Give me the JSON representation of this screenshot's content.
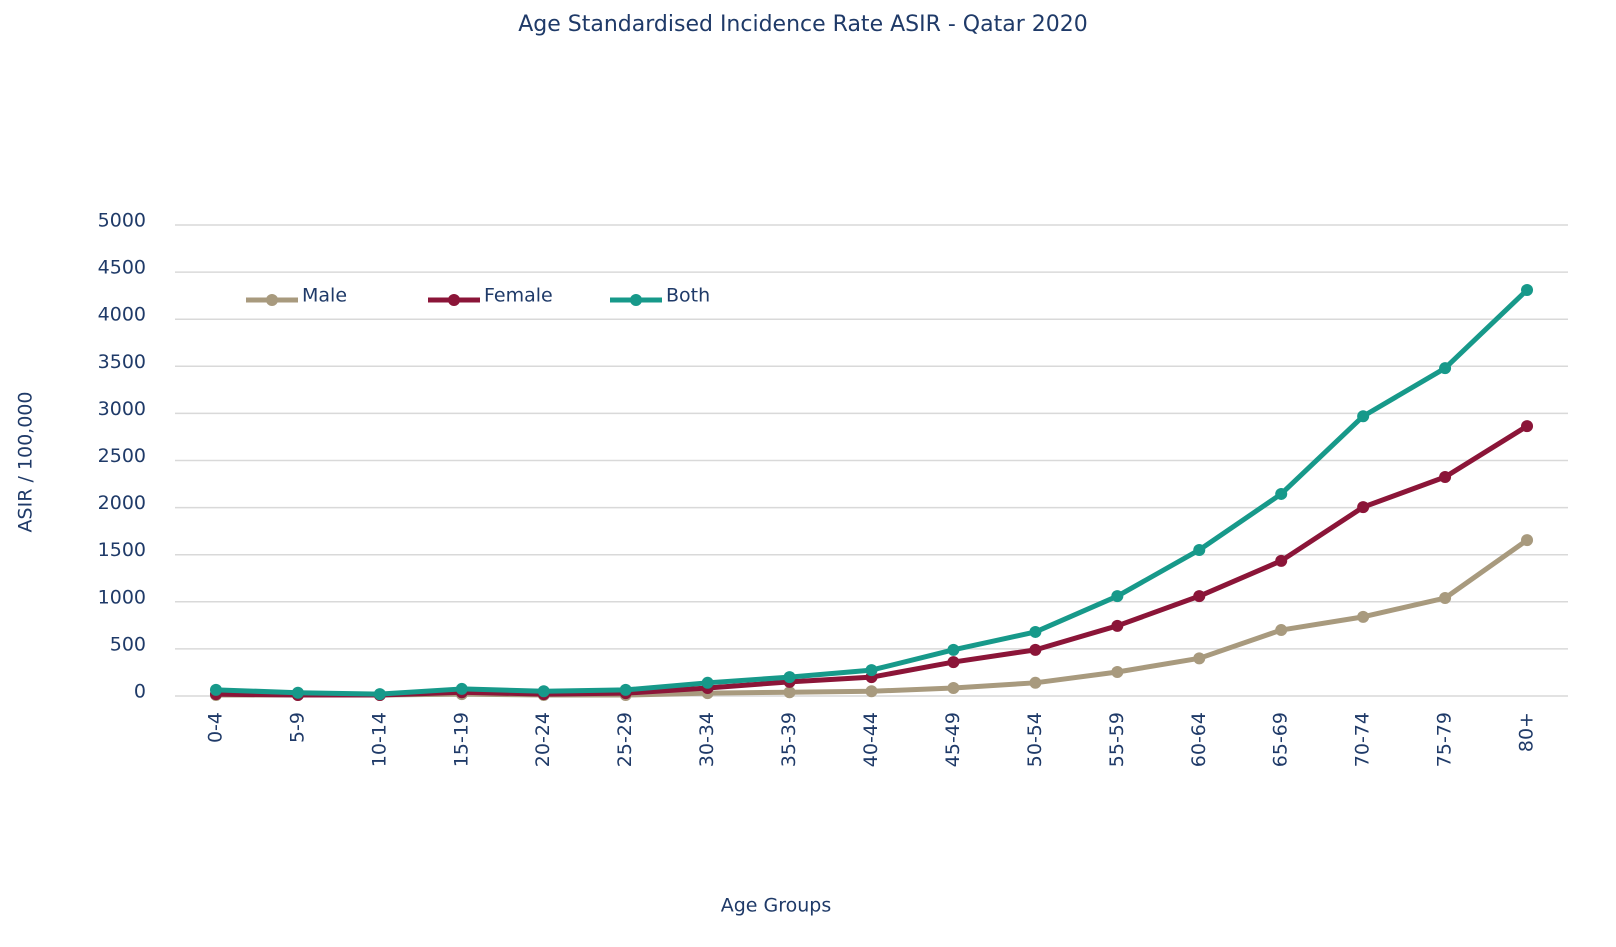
{
  "chart_data": {
    "type": "line",
    "title": "Age Standardised Incidence Rate ASIR - Qatar 2020",
    "x_label": "Age Groups",
    "y_label": "ASIR / 100,000",
    "categories": [
      "0-4",
      "5-9",
      "10-14",
      "15-19",
      "20-24",
      "25-29",
      "30-34",
      "35-39",
      "40-44",
      "45-49",
      "50-54",
      "55-59",
      "60-64",
      "65-69",
      "70-74",
      "75-79",
      "80+"
    ],
    "series": [
      {
        "name": "Male",
        "color": "#a89a7e",
        "values": [
          10,
          10,
          10,
          20,
          10,
          10,
          30,
          40,
          50,
          85,
          140,
          255,
          400,
          700,
          840,
          1040,
          1655
        ]
      },
      {
        "name": "Female",
        "color": "#8b1538",
        "values": [
          20,
          10,
          10,
          40,
          20,
          30,
          85,
          150,
          200,
          360,
          490,
          745,
          1060,
          1435,
          2005,
          2325,
          2865
        ]
      },
      {
        "name": "Both",
        "color": "#17998a",
        "values": [
          65,
          35,
          20,
          75,
          50,
          65,
          140,
          200,
          275,
          490,
          680,
          1060,
          1550,
          2145,
          2970,
          3480,
          4310
        ]
      }
    ],
    "ylim": [
      0,
      5000
    ],
    "yticks": [
      0,
      500,
      1000,
      1500,
      2000,
      2500,
      3000,
      3500,
      4000,
      4500,
      5000
    ],
    "grid": true,
    "legend": "top-left"
  }
}
